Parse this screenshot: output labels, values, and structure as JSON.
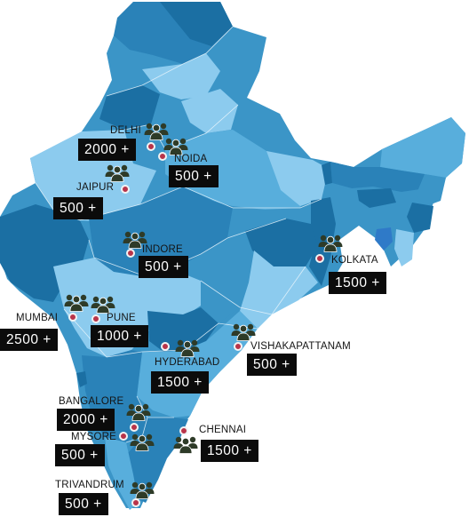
{
  "colors": {
    "people_icon": "#2e3b28",
    "pin": "#b8344a",
    "label_box": "#0b0b0b",
    "map_dark": "#1b6fa3",
    "map_mid": "#3b95c7",
    "map_light": "#8ccbee"
  },
  "icons": {
    "people": "people-group-icon",
    "pin": "location-pin-icon"
  },
  "cities": [
    {
      "key": "delhi",
      "name": "DELHI",
      "count": "2000 +"
    },
    {
      "key": "noida",
      "name": "NOIDA",
      "count": "500 +"
    },
    {
      "key": "jaipur",
      "name": "JAIPUR",
      "count": "500 +"
    },
    {
      "key": "indore",
      "name": "INDORE",
      "count": "500 +"
    },
    {
      "key": "kolkata",
      "name": "KOLKATA",
      "count": "1500 +"
    },
    {
      "key": "mumbai",
      "name": "MUMBAI",
      "count": "2500 +"
    },
    {
      "key": "pune",
      "name": "PUNE",
      "count": "1000 +"
    },
    {
      "key": "hyderabad",
      "name": "HYDERABAD",
      "count": "1500 +"
    },
    {
      "key": "vishakapattanam",
      "name": "VISHAKAPATTANAM",
      "count": "500 +"
    },
    {
      "key": "bangalore",
      "name": "BANGALORE",
      "count": "2000 +"
    },
    {
      "key": "mysore",
      "name": "MYSORE",
      "count": "500 +"
    },
    {
      "key": "chennai",
      "name": "CHENNAI",
      "count": "1500 +"
    },
    {
      "key": "trivandrum",
      "name": "TRIVANDRUM",
      "count": "500 +"
    }
  ]
}
